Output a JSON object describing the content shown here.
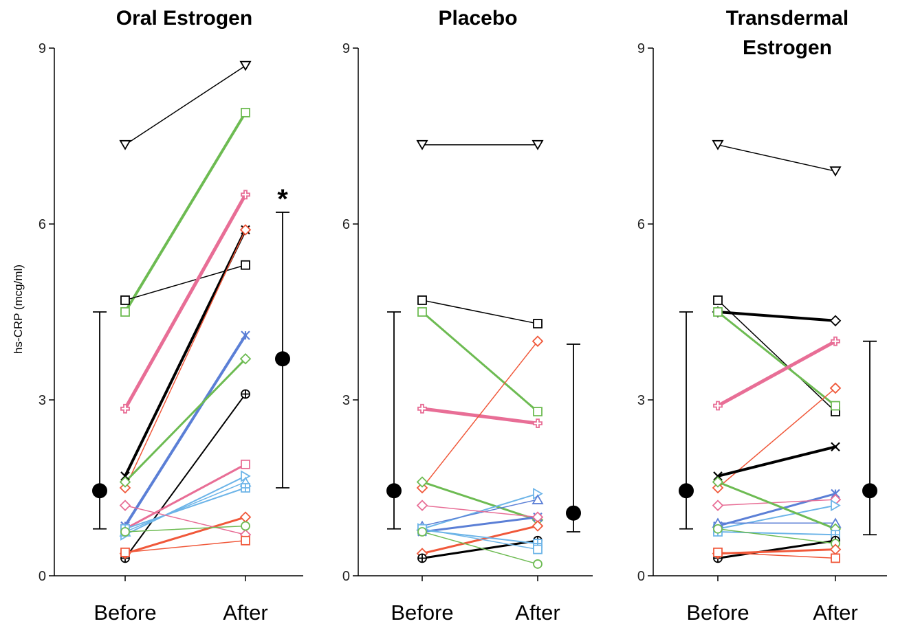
{
  "ylabel": "hs-CRP (mcg/ml)",
  "chart_data": [
    {
      "type": "line",
      "title_lines": [
        "Oral Estrogen"
      ],
      "categories": [
        "Before",
        "After"
      ],
      "ylim": [
        0,
        9
      ],
      "yticks": [
        "0",
        "3",
        "6",
        "9"
      ],
      "annotation": "*",
      "summary": {
        "mean": [
          1.45,
          3.7
        ],
        "upper": [
          4.5,
          6.2
        ],
        "lower": [
          0.8,
          1.5
        ]
      },
      "series": [
        {
          "values": [
            7.35,
            8.7
          ],
          "color": "#000000",
          "marker": "tri-down",
          "width": 1.5
        },
        {
          "values": [
            4.5,
            7.9
          ],
          "color": "#6dbb52",
          "marker": "square",
          "width": 4
        },
        {
          "values": [
            4.7,
            5.3
          ],
          "color": "#000000",
          "marker": "square",
          "width": 1.5
        },
        {
          "values": [
            2.85,
            6.5
          ],
          "color": "#e86e96",
          "marker": "plus",
          "width": 5
        },
        {
          "values": [
            1.7,
            5.9
          ],
          "color": "#000000",
          "marker": "x",
          "width": 4
        },
        {
          "values": [
            1.5,
            5.9
          ],
          "color": "#f0583a",
          "marker": "diamond",
          "width": 1.5
        },
        {
          "values": [
            0.85,
            4.1
          ],
          "color": "#5b7fd6",
          "marker": "star",
          "width": 4
        },
        {
          "values": [
            1.6,
            3.7
          ],
          "color": "#6dbb52",
          "marker": "diamond",
          "width": 3
        },
        {
          "values": [
            0.3,
            3.1
          ],
          "color": "#000000",
          "marker": "circle-plus",
          "width": 2
        },
        {
          "values": [
            0.8,
            1.9
          ],
          "color": "#e86e96",
          "marker": "square",
          "width": 3
        },
        {
          "values": [
            0.7,
            1.7
          ],
          "color": "#6cb4e8",
          "marker": "tri-right",
          "width": 2
        },
        {
          "values": [
            0.75,
            1.6
          ],
          "color": "#6cb4e8",
          "marker": "tri-up",
          "width": 1.5
        },
        {
          "values": [
            0.8,
            1.5
          ],
          "color": "#6cb4e8",
          "marker": "square-plus",
          "width": 2
        },
        {
          "values": [
            0.38,
            1.0
          ],
          "color": "#f0583a",
          "marker": "diamond",
          "width": 3
        },
        {
          "values": [
            1.2,
            0.7
          ],
          "color": "#e86e96",
          "marker": "diamond",
          "width": 1.5
        },
        {
          "values": [
            0.75,
            0.85
          ],
          "color": "#6dbb52",
          "marker": "circle",
          "width": 1.5
        },
        {
          "values": [
            0.4,
            0.6
          ],
          "color": "#f0583a",
          "marker": "square",
          "width": 1.5
        }
      ]
    },
    {
      "type": "line",
      "title_lines": [
        "Placebo"
      ],
      "categories": [
        "Before",
        "After"
      ],
      "ylim": [
        0,
        9
      ],
      "yticks": [
        "0",
        "3",
        "6",
        "9"
      ],
      "annotation": "",
      "summary": {
        "mean": [
          1.45,
          1.07
        ],
        "upper": [
          4.5,
          3.95
        ],
        "lower": [
          0.8,
          0.75
        ]
      },
      "series": [
        {
          "values": [
            7.35,
            7.35
          ],
          "color": "#000000",
          "marker": "tri-down",
          "width": 1.5
        },
        {
          "values": [
            4.7,
            4.3
          ],
          "color": "#000000",
          "marker": "square",
          "width": 1.5
        },
        {
          "values": [
            4.5,
            2.8
          ],
          "color": "#6dbb52",
          "marker": "square",
          "width": 3
        },
        {
          "values": [
            2.85,
            2.6
          ],
          "color": "#e86e96",
          "marker": "plus",
          "width": 5
        },
        {
          "values": [
            1.5,
            4.0
          ],
          "color": "#f0583a",
          "marker": "diamond",
          "width": 1.5
        },
        {
          "values": [
            1.6,
            0.95
          ],
          "color": "#6dbb52",
          "marker": "diamond",
          "width": 3
        },
        {
          "values": [
            0.8,
            1.4
          ],
          "color": "#6cb4e8",
          "marker": "tri-right",
          "width": 2
        },
        {
          "values": [
            0.85,
            1.3
          ],
          "color": "#5b7fd6",
          "marker": "tri-up",
          "width": 1.5
        },
        {
          "values": [
            0.75,
            1.0
          ],
          "color": "#5b7fd6",
          "marker": "star",
          "width": 3
        },
        {
          "values": [
            1.2,
            1.0
          ],
          "color": "#e86e96",
          "marker": "diamond",
          "width": 1.5
        },
        {
          "values": [
            0.38,
            0.85
          ],
          "color": "#f0583a",
          "marker": "diamond",
          "width": 3
        },
        {
          "values": [
            0.3,
            0.6
          ],
          "color": "#000000",
          "marker": "circle-plus",
          "width": 3
        },
        {
          "values": [
            0.78,
            0.55
          ],
          "color": "#6cb4e8",
          "marker": "square-plus",
          "width": 2
        },
        {
          "values": [
            0.8,
            0.45
          ],
          "color": "#6cb4e8",
          "marker": "square",
          "width": 1.5
        },
        {
          "values": [
            0.75,
            0.2
          ],
          "color": "#6dbb52",
          "marker": "circle",
          "width": 1.5
        }
      ]
    },
    {
      "type": "line",
      "title_lines": [
        "Transdermal",
        "Estrogen"
      ],
      "categories": [
        "Before",
        "After"
      ],
      "ylim": [
        0,
        9
      ],
      "yticks": [
        "0",
        "3",
        "6",
        "9"
      ],
      "annotation": "",
      "summary": {
        "mean": [
          1.45,
          1.45
        ],
        "upper": [
          4.5,
          4.0
        ],
        "lower": [
          0.8,
          0.7
        ]
      },
      "series": [
        {
          "values": [
            7.35,
            6.9
          ],
          "color": "#000000",
          "marker": "tri-down",
          "width": 1.5
        },
        {
          "values": [
            4.5,
            4.35
          ],
          "color": "#000000",
          "marker": "diamond",
          "width": 4
        },
        {
          "values": [
            4.7,
            2.8
          ],
          "color": "#000000",
          "marker": "square",
          "width": 1.5
        },
        {
          "values": [
            4.5,
            2.9
          ],
          "color": "#6dbb52",
          "marker": "square",
          "width": 3
        },
        {
          "values": [
            2.9,
            4.0
          ],
          "color": "#e86e96",
          "marker": "plus",
          "width": 5
        },
        {
          "values": [
            1.5,
            3.2
          ],
          "color": "#f0583a",
          "marker": "diamond",
          "width": 1.5
        },
        {
          "values": [
            1.7,
            2.2
          ],
          "color": "#000000",
          "marker": "x",
          "width": 4
        },
        {
          "values": [
            0.85,
            1.4
          ],
          "color": "#5b7fd6",
          "marker": "star",
          "width": 3
        },
        {
          "values": [
            1.2,
            1.3
          ],
          "color": "#e86e96",
          "marker": "diamond",
          "width": 1.5
        },
        {
          "values": [
            0.8,
            1.2
          ],
          "color": "#6cb4e8",
          "marker": "tri-right",
          "width": 2
        },
        {
          "values": [
            0.9,
            0.9
          ],
          "color": "#5b7fd6",
          "marker": "tri-up",
          "width": 1.5
        },
        {
          "values": [
            1.6,
            0.8
          ],
          "color": "#6dbb52",
          "marker": "diamond",
          "width": 3
        },
        {
          "values": [
            0.75,
            0.7
          ],
          "color": "#6cb4e8",
          "marker": "square-plus",
          "width": 2
        },
        {
          "values": [
            0.3,
            0.6
          ],
          "color": "#000000",
          "marker": "circle-plus",
          "width": 3
        },
        {
          "values": [
            0.8,
            0.55
          ],
          "color": "#6dbb52",
          "marker": "circle",
          "width": 1.5
        },
        {
          "values": [
            0.38,
            0.45
          ],
          "color": "#f0583a",
          "marker": "diamond",
          "width": 3
        },
        {
          "values": [
            0.4,
            0.3
          ],
          "color": "#f0583a",
          "marker": "square",
          "width": 1.5
        }
      ]
    }
  ]
}
